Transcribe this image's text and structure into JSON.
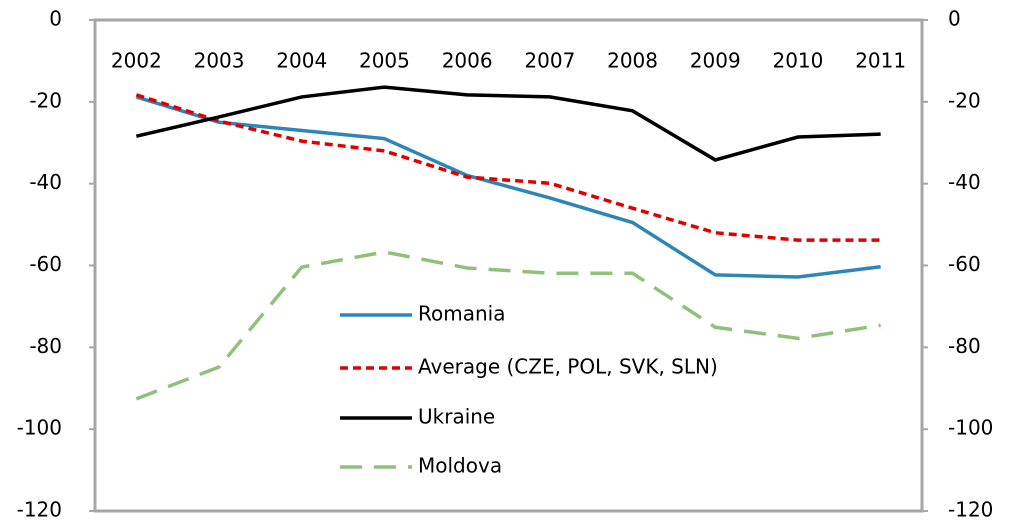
{
  "chart_data": {
    "type": "line",
    "categories": [
      "2002",
      "2003",
      "2004",
      "2005",
      "2006",
      "2007",
      "2008",
      "2009",
      "2010",
      "2011"
    ],
    "series": [
      {
        "name": "Romania",
        "color": "#2e86b8",
        "dash": "solid",
        "values": [
          -18.8,
          -25,
          -27,
          -29,
          -38,
          -43.5,
          -49.5,
          -62.3,
          -62.8,
          -60.3
        ]
      },
      {
        "name": "Average (CZE, POL, SVK, SLN)",
        "color": "#e00000",
        "dash": "dotted",
        "values": [
          -18.3,
          -24.7,
          -29.6,
          -32,
          -38.4,
          -39.9,
          -46,
          -52,
          -53.8,
          -53.8
        ]
      },
      {
        "name": "Ukraine",
        "color": "#000000",
        "dash": "solid",
        "values": [
          -28.4,
          -23.7,
          -18.8,
          -16.4,
          -18.3,
          -18.8,
          -22.2,
          -34.2,
          -28.6,
          -27.9
        ]
      },
      {
        "name": "Moldova",
        "color": "#8fc07c",
        "dash": "dashed",
        "values": [
          -92.6,
          -84.8,
          -60.4,
          -56.7,
          -60.6,
          -61.9,
          -61.9,
          -75.1,
          -77.8,
          -74.6
        ]
      }
    ],
    "ylim": [
      -120,
      0
    ],
    "yticks": [
      0,
      -20,
      -40,
      -60,
      -80,
      -100,
      -120
    ],
    "y2lim": [
      -120,
      0
    ],
    "y2ticks": [
      0,
      -20,
      -40,
      -60,
      -80,
      -100,
      -120
    ],
    "grid": false,
    "legend": "center"
  }
}
